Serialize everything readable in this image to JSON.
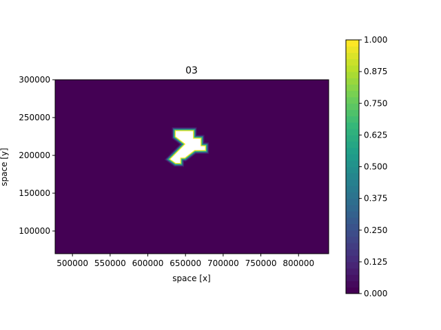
{
  "chart_data": {
    "type": "heatmap",
    "title": "03",
    "xlabel": "space [x]",
    "ylabel": "space [y]",
    "xlim": [
      477000,
      840000
    ],
    "ylim": [
      70000,
      300000
    ],
    "x_ticks": [
      {
        "value": 500000,
        "label": "500000"
      },
      {
        "value": 550000,
        "label": "550000"
      },
      {
        "value": 600000,
        "label": "600000"
      },
      {
        "value": 650000,
        "label": "650000"
      },
      {
        "value": 700000,
        "label": "700000"
      },
      {
        "value": 750000,
        "label": "750000"
      },
      {
        "value": 800000,
        "label": "800000"
      }
    ],
    "y_ticks": [
      {
        "value": 100000,
        "label": "100000"
      },
      {
        "value": 150000,
        "label": "150000"
      },
      {
        "value": 200000,
        "label": "200000"
      },
      {
        "value": 250000,
        "label": "250000"
      },
      {
        "value": 300000,
        "label": "300000"
      }
    ],
    "background_value": 0.0,
    "region": {
      "value": 1.0,
      "color": "#ffffff",
      "polygon": [
        [
          637000,
          232000
        ],
        [
          660000,
          232000
        ],
        [
          660000,
          222000
        ],
        [
          670000,
          222000
        ],
        [
          670000,
          212000
        ],
        [
          676000,
          212000
        ],
        [
          676000,
          207000
        ],
        [
          662000,
          207000
        ],
        [
          649000,
          197000
        ],
        [
          643000,
          197000
        ],
        [
          643000,
          190000
        ],
        [
          637000,
          190000
        ],
        [
          630000,
          195000
        ],
        [
          650000,
          215000
        ],
        [
          637000,
          225000
        ]
      ]
    },
    "colorbar": {
      "colormap": "viridis",
      "range": [
        0,
        1
      ],
      "levels": 40,
      "ticks": [
        {
          "value": 0.0,
          "label": "0.000"
        },
        {
          "value": 0.125,
          "label": "0.125"
        },
        {
          "value": 0.25,
          "label": "0.250"
        },
        {
          "value": 0.375,
          "label": "0.375"
        },
        {
          "value": 0.5,
          "label": "0.500"
        },
        {
          "value": 0.625,
          "label": "0.625"
        },
        {
          "value": 0.75,
          "label": "0.750"
        },
        {
          "value": 0.875,
          "label": "0.875"
        },
        {
          "value": 1.0,
          "label": "1.000"
        }
      ]
    },
    "colors": {
      "low": "#440154",
      "edge_band": [
        "#481a6c",
        "#31688e",
        "#35b779",
        "#fde725"
      ]
    }
  }
}
